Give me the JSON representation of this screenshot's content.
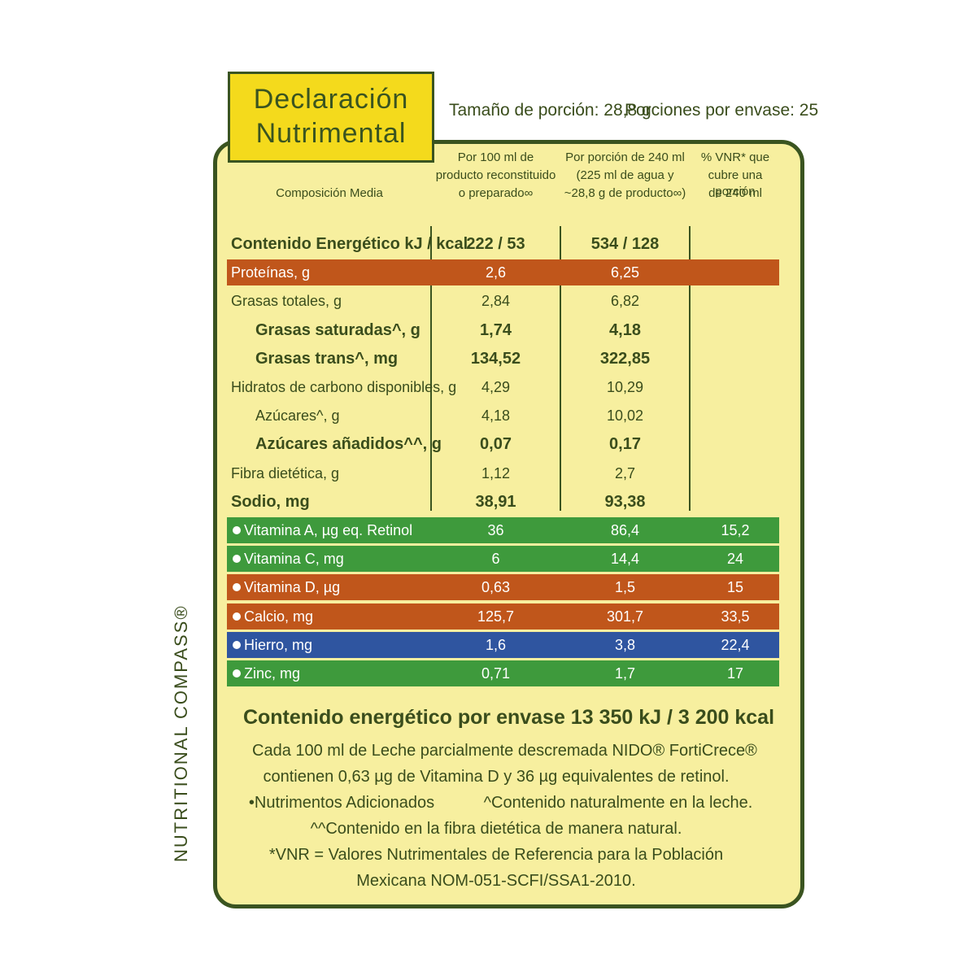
{
  "title": {
    "lines": [
      "Declaración",
      "Nutrimental"
    ]
  },
  "serving": {
    "size": "Tamaño de porción: 28,8 g",
    "count": "Porciones por envase: 25"
  },
  "table": {
    "headers": [
      {
        "lines": [
          "Composición Media"
        ]
      },
      {
        "lines": [
          "Por 100 ml de",
          "producto reconstituido",
          "o preparado∞"
        ]
      },
      {
        "lines": [
          "Por porción de 240 ml",
          "(225 ml de agua y",
          "~28,8 g de producto∞)"
        ]
      },
      {
        "lines": [
          "% VNR* que",
          "cubre una porción",
          "de 240 ml"
        ]
      }
    ],
    "rows": [
      {
        "cells": [
          "Contenido Energético kJ / kcal",
          "222 / 53",
          "534 / 128"
        ],
        "bold": true
      },
      {
        "cells": [
          "Proteínas, g",
          "2,6",
          "6,25"
        ],
        "color": "#c0561b"
      },
      {
        "cells": [
          "Grasas totales, g",
          "2,84",
          "6,82"
        ]
      },
      {
        "cells": [
          "Grasas saturadas^, g",
          "1,74",
          "4,18"
        ],
        "bold": true,
        "indent": true
      },
      {
        "cells": [
          "Grasas trans^, mg",
          "134,52",
          "322,85"
        ],
        "bold": true,
        "indent": true
      },
      {
        "cells": [
          "Hidratos de carbono disponibles, g",
          "4,29",
          "10,29"
        ]
      },
      {
        "cells": [
          "Azúcares^, g",
          "4,18",
          "10,02"
        ],
        "indent": true
      },
      {
        "cells": [
          "Azúcares añadidos^^, g",
          "0,07",
          "0,17"
        ],
        "bold": true,
        "indent": true
      },
      {
        "cells": [
          "Fibra dietética, g",
          "1,12",
          "2,7"
        ]
      },
      {
        "cells": [
          "Sodio, mg",
          "38,91",
          "93,38"
        ],
        "bold": true
      },
      {
        "cells": [
          "Vitamina A, µg eq. Retinol",
          "36",
          "86,4",
          "15,2"
        ],
        "color": "#3e9a3c",
        "bullet": true
      },
      {
        "cells": [
          "Vitamina C, mg",
          "6",
          "14,4",
          "24"
        ],
        "color": "#3e9a3c",
        "bullet": true
      },
      {
        "cells": [
          "Vitamina D, µg",
          "0,63",
          "1,5",
          "15"
        ],
        "color": "#c0561b",
        "bullet": true
      },
      {
        "cells": [
          "Calcio, mg",
          "125,7",
          "301,7",
          "33,5"
        ],
        "color": "#c0561b",
        "bullet": true
      },
      {
        "cells": [
          "Hierro, mg",
          "1,6",
          "3,8",
          "22,4"
        ],
        "color": "#2f55a0",
        "bullet": true
      },
      {
        "cells": [
          "Zinc, mg",
          "0,71",
          "1,7",
          "17"
        ],
        "color": "#3e9a3c",
        "bullet": true
      }
    ]
  },
  "energy_total": "Contenido energético por envase 13 350 kJ / 3 200 kcal",
  "notes": [
    "Cada 100 ml de Leche parcialmente descremada NIDO® FortiCrece®",
    "contienen 0,63 µg de Vitamina D y 36 µg equivalentes de retinol.",
    "•Nutrimentos Adicionados",
    "^Contenido naturalmente en la leche.",
    "^^Contenido en la fibra dietética de manera natural.",
    "*VNR = Valores Nutrimentales de Referencia para la Población",
    "Mexicana NOM-051-SCFI/SSA1-2010."
  ],
  "side_label": "NUTRITIONAL COMPASS®"
}
